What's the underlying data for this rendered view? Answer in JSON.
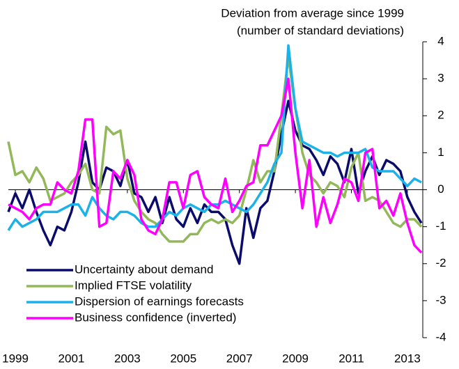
{
  "chart_data": {
    "type": "line",
    "ylabel": [
      "Deviation from average since 1999",
      "(number of standard deviations)"
    ],
    "x": [
      1998.75,
      1999,
      1999.25,
      1999.5,
      1999.75,
      2000,
      2000.25,
      2000.5,
      2000.75,
      2001,
      2001.25,
      2001.5,
      2001.75,
      2002,
      2002.25,
      2002.5,
      2002.75,
      2003,
      2003.25,
      2003.5,
      2003.75,
      2004,
      2004.25,
      2004.5,
      2004.75,
      2005,
      2005.25,
      2005.5,
      2005.75,
      2006,
      2006.25,
      2006.5,
      2006.75,
      2007,
      2007.25,
      2007.5,
      2007.75,
      2008,
      2008.25,
      2008.5,
      2008.75,
      2009,
      2009.25,
      2009.5,
      2009.75,
      2010,
      2010.25,
      2010.5,
      2010.75,
      2011,
      2011.25,
      2011.5,
      2011.75,
      2012,
      2012.25,
      2012.5,
      2012.75,
      2013,
      2013.25,
      2013.5
    ],
    "series": [
      {
        "name": "Uncertainty about demand",
        "color": "#0b0b6b",
        "values": [
          -0.6,
          -0.1,
          -0.5,
          0.0,
          -0.6,
          -1.1,
          -1.5,
          -1.0,
          -1.1,
          -0.6,
          0.2,
          1.3,
          0.2,
          0.0,
          0.6,
          0.5,
          0.1,
          0.8,
          -0.1,
          -0.2,
          -0.6,
          -0.2,
          -0.9,
          -0.2,
          -0.8,
          -1.0,
          -0.5,
          -0.9,
          -0.4,
          -0.6,
          -0.6,
          -0.8,
          -1.5,
          -2.0,
          -0.5,
          -1.3,
          -0.5,
          -0.3,
          0.5,
          1.5,
          2.4,
          1.6,
          1.2,
          1.1,
          0.8,
          0.4,
          0.9,
          0.7,
          0.2,
          1.1,
          -0.1,
          0.5,
          0.9,
          0.4,
          0.8,
          0.7,
          0.5,
          -0.2,
          -0.6,
          -0.9
        ]
      },
      {
        "name": "Implied FTSE volatility",
        "color": "#92b85a",
        "values": [
          1.3,
          0.4,
          0.5,
          0.2,
          0.6,
          0.3,
          -0.3,
          -0.2,
          -0.1,
          0.2,
          0.4,
          0.7,
          0.0,
          -0.1,
          1.7,
          1.5,
          1.6,
          0.3,
          -0.3,
          -0.6,
          -0.8,
          -0.9,
          -1.2,
          -1.4,
          -1.4,
          -1.4,
          -1.2,
          -1.2,
          -0.9,
          -0.8,
          -0.9,
          -0.8,
          -0.9,
          -0.7,
          0.0,
          0.8,
          0.2,
          0.5,
          0.5,
          2.0,
          3.6,
          2.2,
          1.0,
          0.4,
          0.2,
          -0.1,
          0.2,
          0.1,
          -0.2,
          0.6,
          1.0,
          -0.3,
          -0.2,
          -0.3,
          -0.6,
          -0.9,
          -1.0,
          -0.8,
          -0.8,
          -1.0
        ]
      },
      {
        "name": "Dispersion of earnings forecasts",
        "color": "#1ab2e8",
        "values": [
          -1.1,
          -0.8,
          -1.0,
          -0.9,
          -0.8,
          -0.6,
          -0.6,
          -0.6,
          -0.5,
          -0.4,
          -0.4,
          -0.7,
          -0.2,
          -0.5,
          -0.7,
          -0.8,
          -0.6,
          -0.6,
          -0.7,
          -0.9,
          -1.0,
          -1.0,
          -0.8,
          -0.6,
          -0.7,
          -0.5,
          -0.4,
          -0.5,
          -0.6,
          -0.4,
          -0.4,
          -0.3,
          -0.4,
          -0.5,
          -0.6,
          -0.4,
          -0.1,
          0.2,
          0.7,
          1.0,
          3.9,
          2.2,
          1.3,
          1.2,
          1.1,
          1.0,
          1.0,
          0.9,
          1.0,
          1.0,
          1.0,
          1.1,
          0.6,
          0.5,
          0.5,
          0.5,
          0.3,
          0.1,
          0.3,
          0.2
        ]
      },
      {
        "name": "Business confidence (inverted)",
        "color": "#ff00ff",
        "values": [
          -0.4,
          -0.5,
          -0.6,
          -0.8,
          -0.5,
          -0.4,
          -0.4,
          0.2,
          0.0,
          -0.1,
          0.5,
          1.9,
          1.9,
          -1.0,
          -0.9,
          0.5,
          0.3,
          0.8,
          0.4,
          -0.8,
          -1.1,
          -1.2,
          -0.8,
          0.2,
          0.2,
          -0.5,
          0.4,
          0.5,
          -0.2,
          -0.4,
          -0.5,
          0.3,
          -0.6,
          -0.3,
          0.1,
          0.2,
          1.2,
          1.2,
          1.6,
          2.0,
          3.0,
          1.0,
          -0.5,
          0.8,
          -1.0,
          -0.2,
          -0.9,
          -0.4,
          0.3,
          0.2,
          -0.3,
          1.0,
          1.1,
          -0.5,
          -0.3,
          -0.7,
          -0.1,
          -0.9,
          -1.5,
          -1.7
        ]
      }
    ],
    "xlim": [
      1998.75,
      2013.5
    ],
    "xticks": [
      1999,
      2001,
      2003,
      2005,
      2007,
      2009,
      2011,
      2013
    ],
    "ylim": [
      -4,
      4
    ],
    "yticks": [
      -4,
      -3,
      -2,
      -1,
      0,
      1,
      2,
      3,
      4
    ],
    "axis_side": "right",
    "legend": "lower left"
  }
}
